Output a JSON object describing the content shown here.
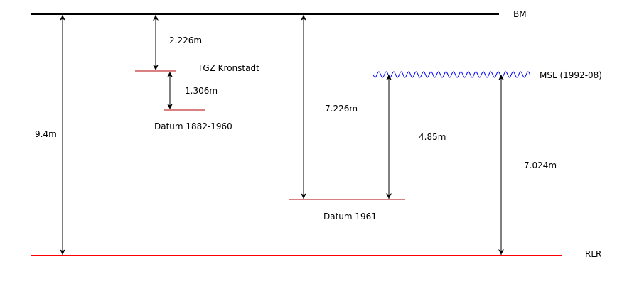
{
  "colors": {
    "ink": "#000000",
    "datum_line": "#b30000",
    "rlr_line": "#ff0000",
    "msl_wave": "#0000ff"
  },
  "levels": {
    "bm": "BM",
    "tgz": "TGZ Kronstadt",
    "msl": "MSL (1992-08)",
    "rlr": "RLR",
    "datum_1882": "Datum 1882-1960",
    "datum_1961": "Datum 1961-"
  },
  "offsets": {
    "bm_to_rlr": "9.4m",
    "bm_to_tgz": "2.226m",
    "tgz_to_datum_1882": "1.306m",
    "bm_to_datum_1961": "7.226m",
    "datum_1961_to_msl": "4.85m",
    "msl_to_rlr": "7.024m"
  }
}
